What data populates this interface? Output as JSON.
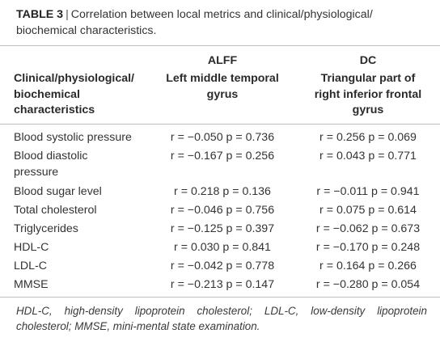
{
  "table": {
    "label": "TABLE 3",
    "separator": "|",
    "title_line1": "Correlation between local metrics and clinical/physiological/",
    "title_line2": "biochemical characteristics."
  },
  "headers": {
    "row_header_line1": "Clinical/physiological/",
    "row_header_line2": "biochemical",
    "row_header_line3": "characteristics",
    "col2_group": "ALFF",
    "col2_sub_line1": "Left middle temporal",
    "col2_sub_line2": "gyrus",
    "col3_group": "DC",
    "col3_sub_line1": "Triangular part of",
    "col3_sub_line2": "right inferior frontal",
    "col3_sub_line3": "gyrus"
  },
  "rows": [
    {
      "characteristic": "Blood systolic pressure",
      "characteristic_line2": "",
      "alff": "r = −0.050 p = 0.736",
      "dc": "r = 0.256 p = 0.069"
    },
    {
      "characteristic": "Blood diastolic",
      "characteristic_line2": "pressure",
      "alff": "r = −0.167 p = 0.256",
      "dc": "r = 0.043 p = 0.771"
    },
    {
      "characteristic": "Blood sugar level",
      "characteristic_line2": "",
      "alff": "r = 0.218 p = 0.136",
      "dc": "r = −0.011 p = 0.941"
    },
    {
      "characteristic": "Total cholesterol",
      "characteristic_line2": "",
      "alff": "r = −0.046 p = 0.756",
      "dc": "r = 0.075 p = 0.614"
    },
    {
      "characteristic": "Triglycerides",
      "characteristic_line2": "",
      "alff": "r = −0.125 p = 0.397",
      "dc": "r = −0.062 p = 0.673"
    },
    {
      "characteristic": "HDL-C",
      "characteristic_line2": "",
      "alff": "r = 0.030 p = 0.841",
      "dc": "r = −0.170 p = 0.248"
    },
    {
      "characteristic": "LDL-C",
      "characteristic_line2": "",
      "alff": "r = −0.042 p = 0.778",
      "dc": "r = 0.164 p = 0.266"
    },
    {
      "characteristic": "MMSE",
      "characteristic_line2": "",
      "alff": "r = −0.213 p = 0.147",
      "dc": "r = −0.280 p = 0.054"
    }
  ],
  "footnote": "HDL-C, high-density lipoprotein cholesterol; LDL-C, low-density lipoprotein cholesterol; MMSE, mini-mental state examination."
}
